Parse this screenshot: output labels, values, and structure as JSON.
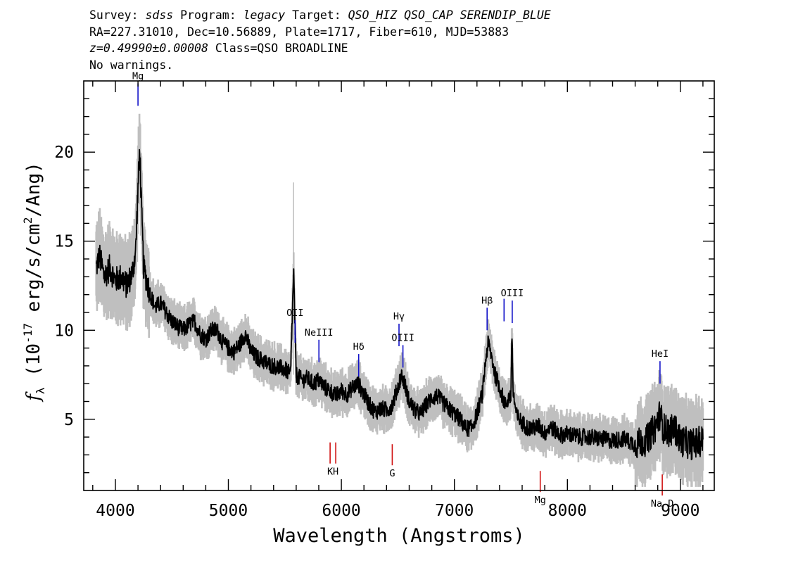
{
  "header": {
    "survey_label": "Survey:",
    "survey": "sdss",
    "program_label": "Program:",
    "program": "legacy",
    "target_label": "Target:",
    "target": "QSO_HIZ QSO_CAP SERENDIP_BLUE",
    "coords": "RA=227.31010, Dec=10.56889, Plate=1717, Fiber=610, MJD=53883",
    "redshift": "z=0.49990±0.00008",
    "class": "Class=QSO BROADLINE",
    "warnings": "No warnings."
  },
  "chart_data": {
    "type": "line",
    "xlabel": "Wavelength (Angstroms)",
    "ylabel": "f_λ (10^-17 erg/s/cm^2/Ang)",
    "xlim": [
      3720,
      9300
    ],
    "ylim": [
      1,
      24
    ],
    "xticks": [
      4000,
      5000,
      6000,
      7000,
      8000,
      9000
    ],
    "yticks": [
      5,
      10,
      15,
      20
    ],
    "grid": false,
    "colors": {
      "flux": "#000000",
      "error": "#bfbfbf",
      "emission": "#1010c8",
      "absorption": "#d01010"
    },
    "series": [
      {
        "name": "",
        "x": [
          3830,
          3860,
          3900,
          3950,
          4000,
          4050,
          4100,
          4150,
          4180,
          4200,
          4215,
          4230,
          4250,
          4300,
          4350,
          4400,
          4450,
          4500,
          4550,
          4600,
          4650,
          4700,
          4750,
          4800,
          4850,
          4900,
          4950,
          5000,
          5050,
          5100,
          5150,
          5200,
          5250,
          5300,
          5350,
          5400,
          5450,
          5500,
          5550,
          5577,
          5600,
          5650,
          5700,
          5750,
          5800,
          5850,
          5900,
          5950,
          6000,
          6050,
          6100,
          6150,
          6200,
          6250,
          6300,
          6350,
          6400,
          6450,
          6500,
          6530,
          6560,
          6600,
          6650,
          6700,
          6750,
          6800,
          6850,
          6900,
          6950,
          7000,
          7050,
          7100,
          7150,
          7200,
          7250,
          7280,
          7300,
          7330,
          7360,
          7400,
          7450,
          7480,
          7500,
          7510,
          7520,
          7550,
          7600,
          7650,
          7700,
          7750,
          7800,
          7850,
          7900,
          7950,
          8000,
          8100,
          8200,
          8300,
          8400,
          8500,
          8600,
          8700,
          8780,
          8820,
          8850,
          8900,
          8950,
          9000,
          9100,
          9200
        ],
        "y": [
          13.5,
          14.2,
          13.0,
          13.5,
          12.8,
          13.0,
          12.5,
          13.2,
          14.5,
          18.0,
          20.2,
          17.0,
          13.5,
          12.2,
          11.3,
          11.5,
          11.0,
          10.5,
          10.2,
          10.0,
          10.3,
          10.5,
          9.8,
          9.5,
          10.0,
          10.0,
          9.3,
          9.0,
          8.8,
          9.2,
          9.8,
          8.8,
          8.5,
          8.3,
          8.1,
          8.0,
          7.9,
          7.8,
          7.5,
          13.3,
          7.5,
          7.2,
          7.3,
          7.0,
          7.2,
          6.8,
          6.6,
          6.3,
          6.6,
          6.4,
          6.8,
          7.0,
          6.4,
          5.8,
          5.4,
          5.6,
          5.5,
          5.8,
          6.8,
          7.5,
          7.0,
          6.0,
          5.5,
          5.3,
          5.8,
          6.2,
          6.3,
          5.9,
          5.6,
          5.3,
          5.0,
          4.5,
          4.5,
          5.3,
          6.5,
          8.5,
          9.3,
          8.5,
          7.5,
          6.8,
          5.8,
          6.2,
          6.3,
          9.8,
          6.5,
          5.2,
          4.8,
          4.5,
          4.5,
          4.6,
          4.2,
          4.6,
          4.3,
          4.1,
          4.2,
          4.0,
          4.0,
          3.9,
          3.8,
          3.9,
          3.6,
          3.8,
          4.6,
          5.3,
          4.5,
          4.3,
          4.5,
          3.8,
          3.6,
          3.8
        ]
      }
    ],
    "emission_lines": [
      {
        "label": "Mg",
        "x": 4200,
        "y": 22.6
      },
      {
        "label": "OII",
        "x": 5590,
        "y": 9.3
      },
      {
        "label": "NeIII",
        "x": 5801,
        "y": 8.2
      },
      {
        "label": "Hδ",
        "x": 6153,
        "y": 7.4
      },
      {
        "label": "Hγ",
        "x": 6510,
        "y": 9.1
      },
      {
        "label": "OIII",
        "x": 6545,
        "y": 7.9
      },
      {
        "label": "Hβ",
        "x": 7290,
        "y": 10.0
      },
      {
        "label": "OIII",
        "x": 7512,
        "y": 10.4
      },
      {
        "label": "OIII",
        "x": 7440,
        "y": 10.5
      },
      {
        "label": "HeI",
        "x": 8820,
        "y": 7.0
      }
    ],
    "absorption_lines": [
      {
        "label": "K",
        "x": 5900,
        "y": 3.7
      },
      {
        "label": "H",
        "x": 5950,
        "y": 3.7
      },
      {
        "label": "G",
        "x": 6450,
        "y": 3.6
      },
      {
        "label": "Mg",
        "x": 7760,
        "y": 2.1
      },
      {
        "label": "Na D",
        "x": 8840,
        "y": 1.9
      }
    ]
  }
}
